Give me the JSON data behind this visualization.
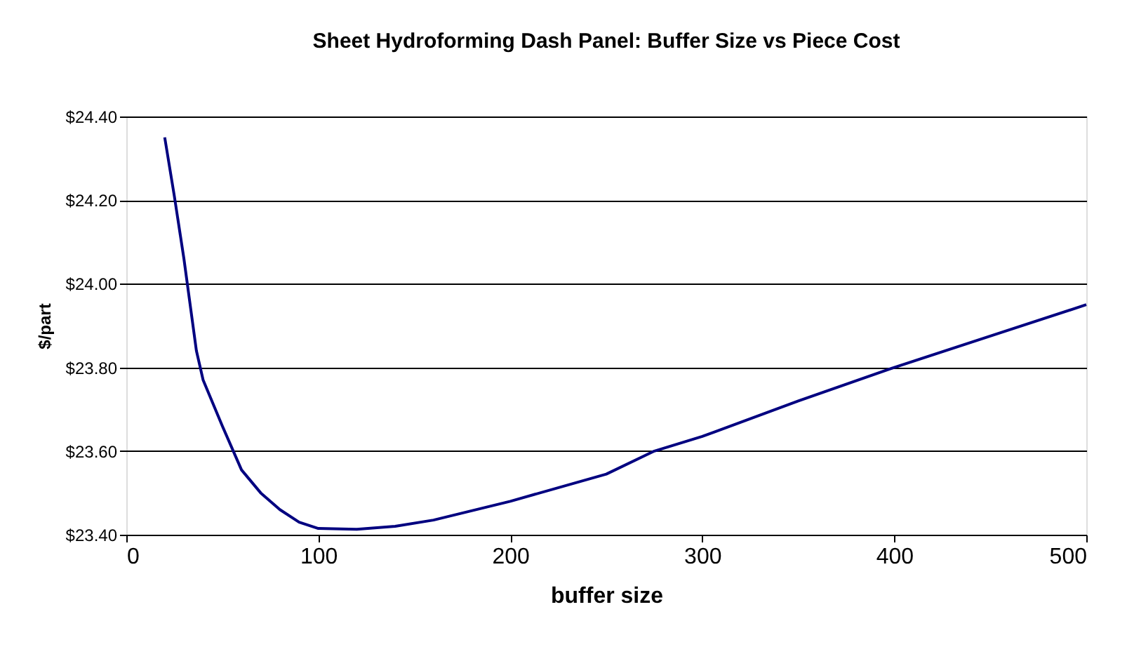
{
  "chart_data": {
    "type": "line",
    "title": "Sheet Hydroforming Dash Panel: Buffer Size vs Piece Cost",
    "xlabel": "buffer size",
    "ylabel": "$/part",
    "x": [
      20,
      25,
      30,
      36.5,
      40,
      50,
      60,
      70,
      80,
      90,
      100,
      120,
      140,
      160,
      200,
      250,
      275,
      300,
      350,
      400,
      450,
      500
    ],
    "series": [
      {
        "color": "#000080",
        "values": [
          24.35,
          24.21,
          24.06,
          23.84,
          23.77,
          23.66,
          23.555,
          23.5,
          23.46,
          23.43,
          23.415,
          23.413,
          23.42,
          23.435,
          23.48,
          23.545,
          23.6,
          23.635,
          23.72,
          23.8,
          23.875,
          23.95
        ]
      }
    ],
    "xlim": [
      0,
      500
    ],
    "xticks": [
      0,
      100,
      200,
      300,
      400,
      500
    ],
    "ylim": [
      23.4,
      24.4
    ],
    "yticks": [
      {
        "value": 23.4,
        "label": "$23.40"
      },
      {
        "value": 23.6,
        "label": "$23.60"
      },
      {
        "value": 23.8,
        "label": "$23.80"
      },
      {
        "value": 24.0,
        "label": "$24.00"
      },
      {
        "value": 24.2,
        "label": "$24.20"
      },
      {
        "value": 24.4,
        "label": "$24.40"
      }
    ],
    "grid": "y",
    "legend": false,
    "marker": "none",
    "line_style": "solid"
  }
}
